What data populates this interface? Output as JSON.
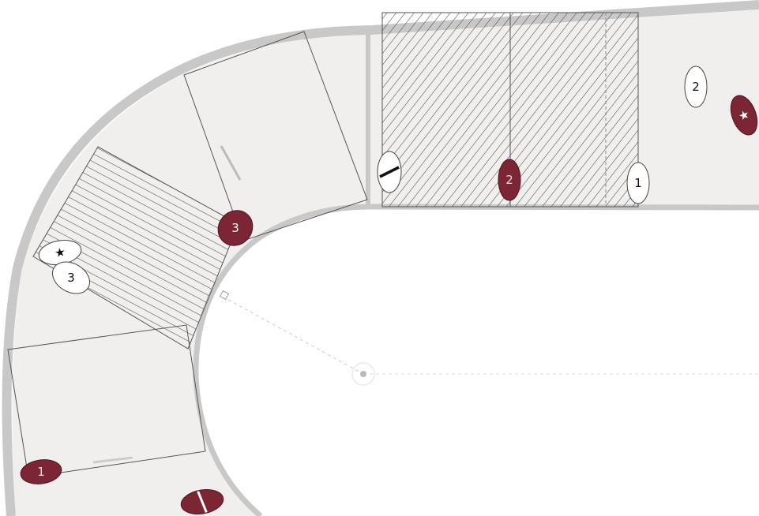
{
  "board": {
    "track_color": "#f0efee",
    "border_color": "#c8c8c8",
    "hatch_color": "#4a4a4a",
    "line_color": "#555555"
  },
  "teams": {
    "home": {
      "name": "maroon",
      "fill": "#7b2535",
      "stroke": "#4e1620",
      "text": "#ffffff"
    },
    "away": {
      "name": "white",
      "fill": "#ffffff",
      "stroke": "#444444",
      "text": "#111111"
    }
  },
  "tokens": [
    {
      "id": "home-star",
      "team": "home",
      "label": "★",
      "kind": "star"
    },
    {
      "id": "home-2",
      "team": "home",
      "label": "2",
      "kind": "number"
    },
    {
      "id": "home-3",
      "team": "home",
      "label": "3",
      "kind": "number"
    },
    {
      "id": "home-1",
      "team": "home",
      "label": "1",
      "kind": "number"
    },
    {
      "id": "home-slash",
      "team": "home",
      "label": "",
      "kind": "pivot"
    },
    {
      "id": "away-2",
      "team": "away",
      "label": "2",
      "kind": "number"
    },
    {
      "id": "away-1",
      "team": "away",
      "label": "1",
      "kind": "number"
    },
    {
      "id": "away-slash",
      "team": "away",
      "label": "",
      "kind": "pivot"
    },
    {
      "id": "away-star",
      "team": "away",
      "label": "★",
      "kind": "star"
    },
    {
      "id": "away-3",
      "team": "away",
      "label": "3",
      "kind": "number"
    }
  ]
}
